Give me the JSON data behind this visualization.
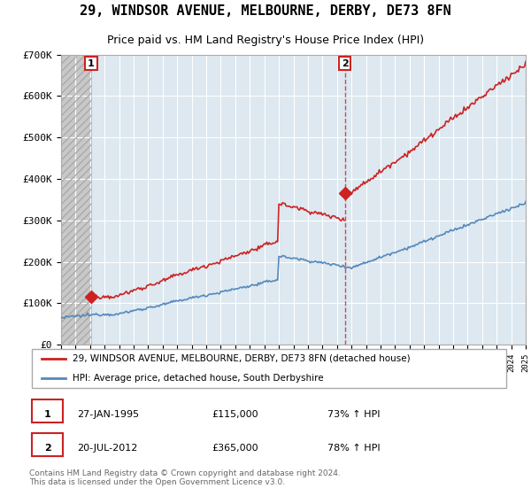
{
  "title": "29, WINDSOR AVENUE, MELBOURNE, DERBY, DE73 8FN",
  "subtitle": "Price paid vs. HM Land Registry's House Price Index (HPI)",
  "ylim": [
    0,
    700000
  ],
  "yticks": [
    0,
    100000,
    200000,
    300000,
    400000,
    500000,
    600000,
    700000
  ],
  "ytick_labels": [
    "£0",
    "£100K",
    "£200K",
    "£300K",
    "£400K",
    "£500K",
    "£600K",
    "£700K"
  ],
  "xlim_start": 1993,
  "xlim_end": 2025,
  "sale1_year": 1995.07,
  "sale1_price": 115000,
  "sale2_year": 2012.55,
  "sale2_price": 365000,
  "hpi_color": "#5588bb",
  "price_color": "#cc2222",
  "plot_bg_color": "#dde8f0",
  "grid_color": "#ffffff",
  "hatch_color": "#c8c8c8",
  "legend_label1": "29, WINDSOR AVENUE, MELBOURNE, DERBY, DE73 8FN (detached house)",
  "legend_label2": "HPI: Average price, detached house, South Derbyshire",
  "row1_date": "27-JAN-1995",
  "row1_price": "£115,000",
  "row1_pct": "73% ↑ HPI",
  "row2_date": "20-JUL-2012",
  "row2_price": "£365,000",
  "row2_pct": "78% ↑ HPI",
  "footer": "Contains HM Land Registry data © Crown copyright and database right 2024.\nThis data is licensed under the Open Government Licence v3.0.",
  "title_fontsize": 11,
  "subtitle_fontsize": 9
}
